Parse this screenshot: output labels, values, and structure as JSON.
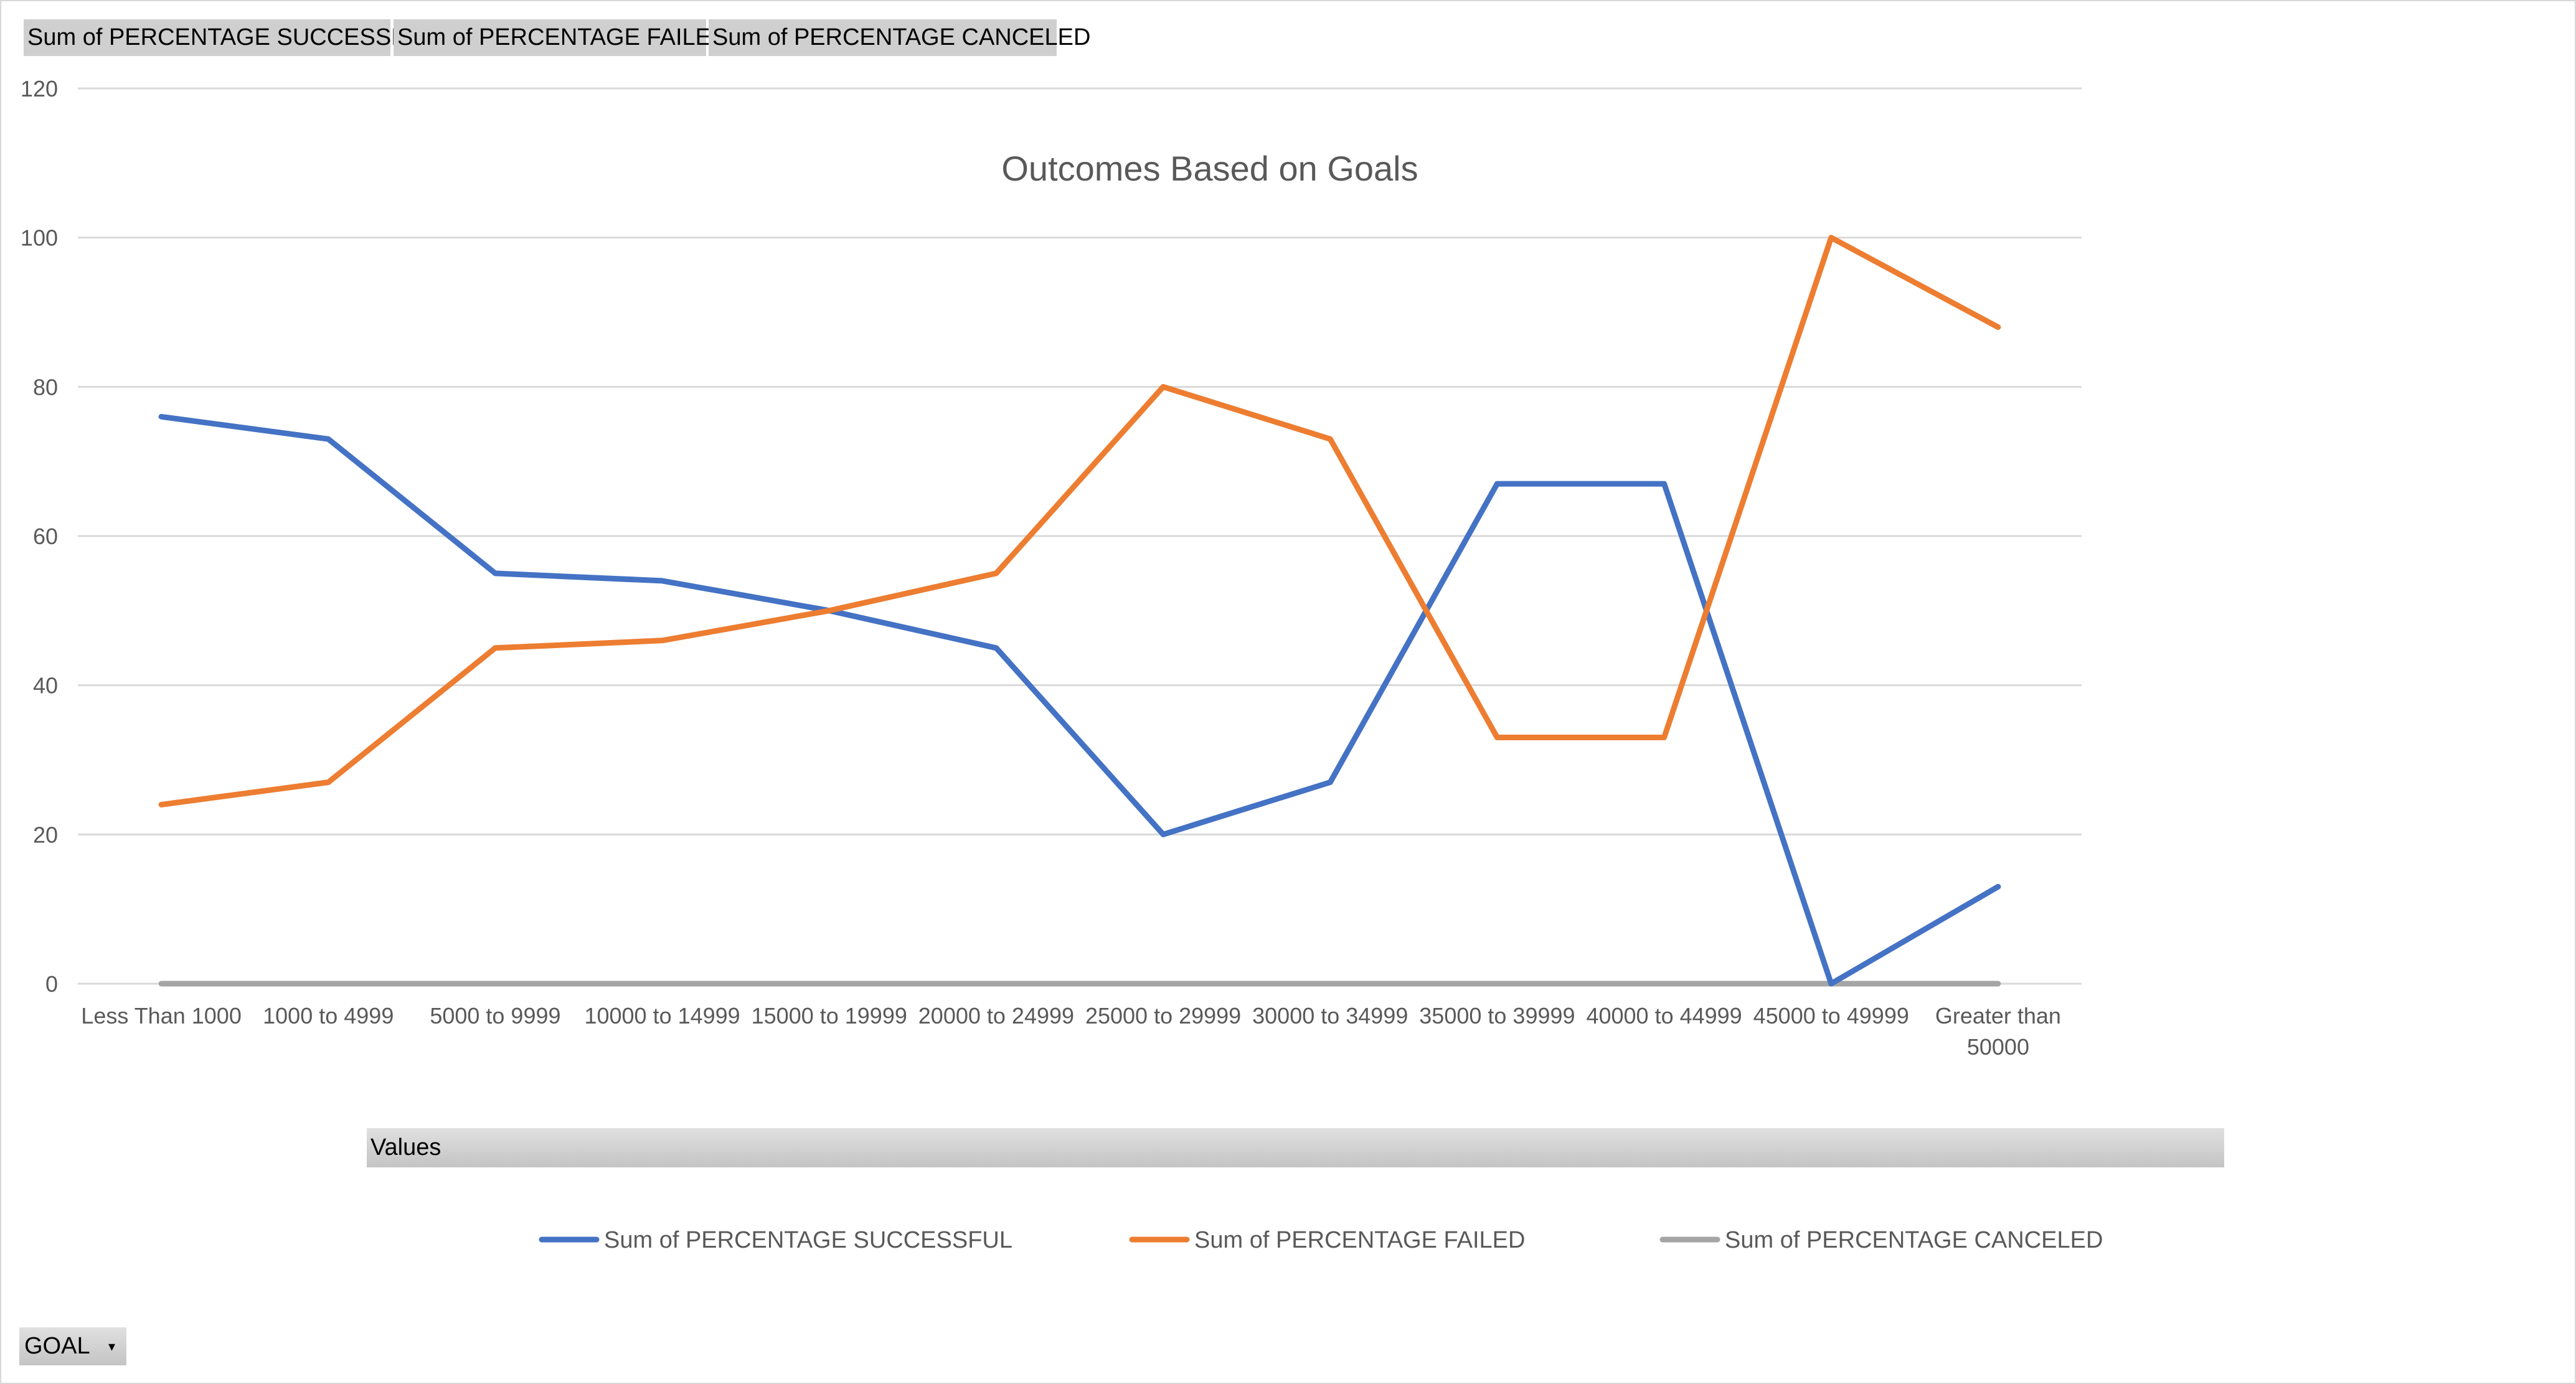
{
  "pivot_fields": {
    "successful": "Sum of PERCENTAGE SUCCESSFUL",
    "failed": "Sum of PERCENTAGE FAILED",
    "canceled": "Sum of PERCENTAGE CANCELED"
  },
  "values_label": "Values",
  "goal_button": {
    "label": "GOAL",
    "icon": "dropdown-arrow-icon"
  },
  "chart_data": {
    "type": "line",
    "title": "Outcomes Based on Goals",
    "xlabel": "",
    "ylabel": "",
    "ylim": [
      0,
      120
    ],
    "yticks": [
      0,
      20,
      40,
      60,
      80,
      100,
      120
    ],
    "grid": true,
    "legend_position": "bottom",
    "categories": [
      "Less Than 1000",
      "1000 to 4999",
      "5000 to 9999",
      "10000 to 14999",
      "15000 to 19999",
      "20000 to 24999",
      "25000 to 29999",
      "30000 to 34999",
      "35000 to 39999",
      "40000 to 44999",
      "45000 to 49999",
      "Greater than 50000"
    ],
    "series": [
      {
        "name": "Sum of PERCENTAGE SUCCESSFUL",
        "color": "#4472c4",
        "values": [
          76,
          73,
          55,
          54,
          50,
          45,
          20,
          27,
          67,
          67,
          0,
          13
        ]
      },
      {
        "name": "Sum of PERCENTAGE FAILED",
        "color": "#ed7d31",
        "values": [
          24,
          27,
          45,
          46,
          50,
          55,
          80,
          73,
          33,
          33,
          100,
          88
        ]
      },
      {
        "name": "Sum of PERCENTAGE CANCELED",
        "color": "#a5a5a5",
        "values": [
          0,
          0,
          0,
          0,
          0,
          0,
          0,
          0,
          0,
          0,
          0,
          0
        ]
      }
    ]
  }
}
